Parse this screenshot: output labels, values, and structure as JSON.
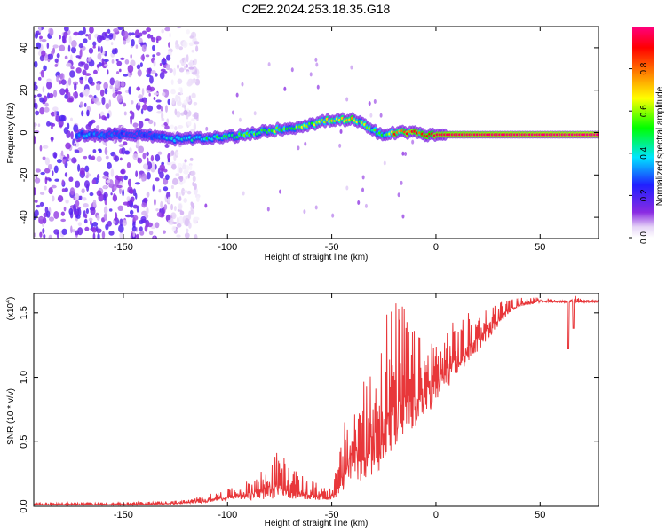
{
  "page": {
    "title": "C2E2.2024.253.18.35.G18"
  },
  "chart_data": [
    {
      "type": "heatmap",
      "title": "C2E2.2024.253.18.35.G18",
      "xlabel": "Height of straight line (km)",
      "ylabel": "Frequency (Hz)",
      "xlim": [
        -193,
        78
      ],
      "ylim": [
        -50,
        50
      ],
      "xticks": [
        -150,
        -100,
        -50,
        0,
        50
      ],
      "xtick_labels": [
        "-150",
        "-100",
        "-50",
        "0",
        "50"
      ],
      "yticks": [
        -40,
        -20,
        0,
        20,
        40
      ],
      "ytick_labels": [
        "-40",
        "-20",
        "0",
        "20",
        "40"
      ],
      "colorbar": {
        "label": "Normalized spectral amplitude",
        "range": [
          0,
          1
        ],
        "ticks": [
          0.0,
          0.2,
          0.4,
          0.6,
          0.8
        ],
        "tick_labels": [
          "0.0",
          "0.2",
          "0.4",
          "0.6",
          "0.8"
        ],
        "colors": [
          "#ffffff",
          "#8a2be2",
          "#0000ff",
          "#00ffff",
          "#00ff00",
          "#ffff00",
          "#ff8000",
          "#ff0000",
          "#ff0080"
        ]
      },
      "noise_region_x": [
        -193,
        -120
      ],
      "ridge": {
        "x": [
          -172,
          -160,
          -150,
          -140,
          -128,
          -120,
          -110,
          -100,
          -90,
          -80,
          -70,
          -60,
          -50,
          -40,
          -35,
          -30,
          -25,
          -20,
          -15,
          -10,
          -5,
          0,
          10,
          30,
          50,
          78
        ],
        "frequency": [
          -1,
          -1,
          -1,
          -1,
          -3,
          -3,
          -3,
          -2,
          -1,
          1,
          2,
          4,
          6,
          6,
          4,
          1,
          -2,
          0,
          0,
          0,
          -1,
          -1,
          -1,
          -1,
          -1,
          -1
        ],
        "amplitude": [
          0.3,
          0.25,
          0.2,
          0.2,
          0.35,
          0.4,
          0.45,
          0.5,
          0.5,
          0.55,
          0.55,
          0.6,
          0.65,
          0.7,
          0.6,
          0.5,
          0.45,
          0.8,
          0.85,
          0.85,
          0.9,
          0.95,
          0.97,
          0.98,
          0.99,
          1.0
        ]
      }
    },
    {
      "type": "line",
      "xlabel": "Height of straight line (km)",
      "ylabel": "SNR (10 * v/v)",
      "y_multiplier_label": "(x10",
      "y_multiplier_exponent": "4",
      "y_multiplier_close": ")",
      "xlim": [
        -193,
        78
      ],
      "ylim": [
        0,
        1.65
      ],
      "xticks": [
        -150,
        -100,
        -50,
        0,
        50
      ],
      "xtick_labels": [
        "-150",
        "-100",
        "-50",
        "0",
        "50"
      ],
      "yticks": [
        0.0,
        0.5,
        1.0,
        1.5
      ],
      "ytick_labels": [
        "0.0",
        "0.5",
        "1.0",
        "1.5"
      ],
      "series": [
        {
          "color": "#e8373a",
          "envelope": {
            "x": [
              -193,
              -170,
              -150,
              -130,
              -120,
              -110,
              -100,
              -90,
              -80,
              -75,
              -70,
              -60,
              -50,
              -47,
              -44,
              -40,
              -35,
              -30,
              -25,
              -20,
              -15,
              -10,
              -5,
              0,
              5,
              10,
              15,
              20,
              25,
              30,
              35,
              40,
              50,
              60,
              63,
              64,
              66,
              70,
              78
            ],
            "base": [
              0.01,
              0.01,
              0.01,
              0.015,
              0.02,
              0.03,
              0.05,
              0.05,
              0.05,
              0.08,
              0.06,
              0.05,
              0.05,
              0.08,
              0.12,
              0.2,
              0.2,
              0.25,
              0.3,
              0.4,
              0.5,
              0.6,
              0.7,
              0.8,
              0.9,
              1.0,
              1.1,
              1.2,
              1.3,
              1.4,
              1.5,
              1.55,
              1.58,
              1.58,
              1.58,
              1.58,
              1.58,
              1.58,
              1.58
            ],
            "peak": [
              0.03,
              0.03,
              0.03,
              0.04,
              0.05,
              0.09,
              0.13,
              0.2,
              0.35,
              0.45,
              0.3,
              0.2,
              0.15,
              0.35,
              0.65,
              0.85,
              0.95,
              1.2,
              1.58,
              1.6,
              1.6,
              1.35,
              1.3,
              1.35,
              1.4,
              1.45,
              1.5,
              1.52,
              1.55,
              1.6,
              1.6,
              1.62,
              1.62,
              1.6,
              1.6,
              1.6,
              1.65,
              1.6,
              1.6
            ]
          },
          "dips": [
            {
              "x": 63.5,
              "y": 1.22
            },
            {
              "x": 66,
              "y": 1.38
            }
          ]
        }
      ]
    }
  ]
}
